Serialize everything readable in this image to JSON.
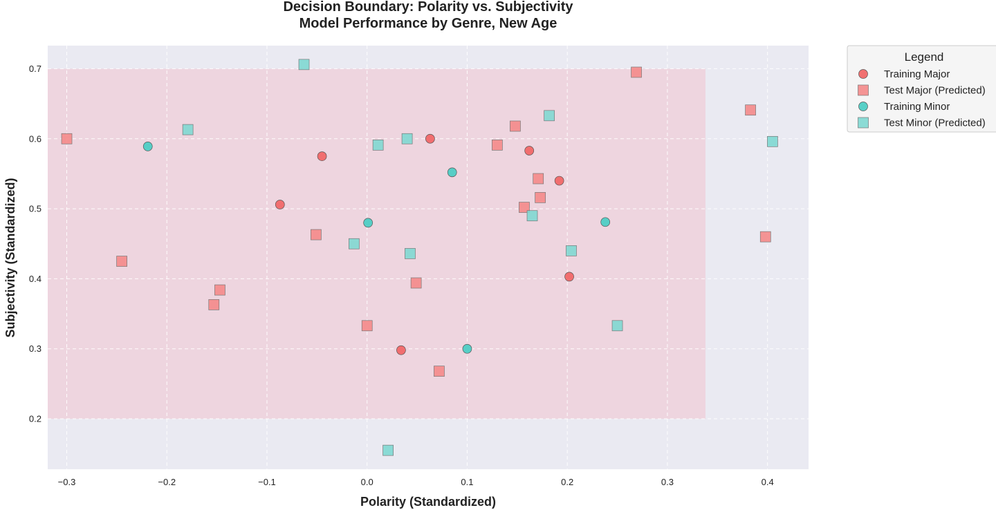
{
  "chart_data": {
    "type": "scatter",
    "title": [
      "Decision Boundary: Polarity vs. Subjectivity",
      "Model Performance by Genre, New Age"
    ],
    "xlabel": "Polarity (Standardized)",
    "ylabel": "Subjectivity (Standardized)",
    "xlim": [
      -0.319,
      0.441
    ],
    "ylim": [
      0.128,
      0.733
    ],
    "x_ticks": [
      -0.3,
      -0.2,
      -0.1,
      0.0,
      0.1,
      0.2,
      0.3,
      0.4
    ],
    "x_tick_labels": [
      "−0.3",
      "−0.2",
      "−0.1",
      "0.0",
      "0.1",
      "0.2",
      "0.3",
      "0.4"
    ],
    "y_ticks": [
      0.2,
      0.3,
      0.4,
      0.5,
      0.6,
      0.7
    ],
    "y_tick_labels": [
      "0.2",
      "0.3",
      "0.4",
      "0.5",
      "0.6",
      "0.7"
    ],
    "grid": true,
    "background_color": "#eaeaf2",
    "decision_region": {
      "x": [
        -0.319,
        0.338
      ],
      "y": [
        0.2,
        0.7
      ],
      "color": "#f4b6c2",
      "opacity": 0.4
    },
    "legend": {
      "title": "Legend",
      "placement": "outside-top-right"
    },
    "series": [
      {
        "name": "Training Major",
        "marker": "circle",
        "color": "#f06868",
        "points": [
          [
            0.063,
            0.6
          ],
          [
            -0.045,
            0.575
          ],
          [
            0.162,
            0.583
          ],
          [
            0.192,
            0.54
          ],
          [
            -0.087,
            0.506
          ],
          [
            0.202,
            0.403
          ],
          [
            0.034,
            0.298
          ]
        ]
      },
      {
        "name": "Test Major (Predicted)",
        "marker": "square",
        "color": "#f48a8a",
        "points": [
          [
            0.269,
            0.695
          ],
          [
            0.383,
            0.641
          ],
          [
            0.148,
            0.618
          ],
          [
            -0.3,
            0.6
          ],
          [
            0.13,
            0.591
          ],
          [
            0.171,
            0.543
          ],
          [
            0.173,
            0.516
          ],
          [
            0.157,
            0.502
          ],
          [
            0.398,
            0.46
          ],
          [
            -0.051,
            0.463
          ],
          [
            -0.245,
            0.425
          ],
          [
            -0.147,
            0.384
          ],
          [
            0.049,
            0.394
          ],
          [
            -0.153,
            0.363
          ],
          [
            0.0,
            0.333
          ],
          [
            0.072,
            0.268
          ]
        ]
      },
      {
        "name": "Training Minor",
        "marker": "circle",
        "color": "#4ecdc4",
        "points": [
          [
            -0.219,
            0.589
          ],
          [
            0.085,
            0.552
          ],
          [
            0.001,
            0.48
          ],
          [
            0.238,
            0.481
          ],
          [
            0.1,
            0.3
          ]
        ]
      },
      {
        "name": "Test Minor (Predicted)",
        "marker": "square",
        "color": "#80d8d2",
        "points": [
          [
            -0.063,
            0.706
          ],
          [
            -0.179,
            0.613
          ],
          [
            0.182,
            0.633
          ],
          [
            0.405,
            0.596
          ],
          [
            0.011,
            0.591
          ],
          [
            0.04,
            0.6
          ],
          [
            0.165,
            0.49
          ],
          [
            -0.013,
            0.45
          ],
          [
            0.043,
            0.436
          ],
          [
            0.204,
            0.44
          ],
          [
            0.25,
            0.333
          ],
          [
            0.021,
            0.155
          ]
        ]
      }
    ]
  }
}
